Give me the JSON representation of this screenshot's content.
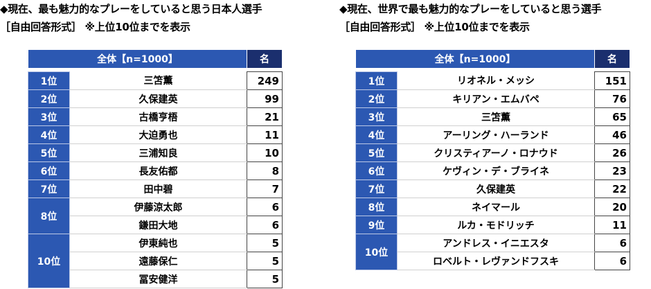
{
  "panels": [
    {
      "title": "◆現在、最も魅力的なプレーをしていると思う日本人選手",
      "subtitle": "［自由回答形式］ ※上位10位までを表示",
      "header": [
        "全体【n=1000】",
        "名"
      ],
      "groups": [
        {
          "rank": "1位",
          "entries": [
            {
              "name": "三笘薫",
              "count": 249
            }
          ]
        },
        {
          "rank": "2位",
          "entries": [
            {
              "name": "久保建英",
              "count": 99
            }
          ]
        },
        {
          "rank": "3位",
          "entries": [
            {
              "name": "古橋亨梧",
              "count": 21
            }
          ]
        },
        {
          "rank": "4位",
          "entries": [
            {
              "name": "大迫勇也",
              "count": 11
            }
          ]
        },
        {
          "rank": "5位",
          "entries": [
            {
              "name": "三浦知良",
              "count": 10
            }
          ]
        },
        {
          "rank": "6位",
          "entries": [
            {
              "name": "長友佑都",
              "count": 8
            }
          ]
        },
        {
          "rank": "7位",
          "entries": [
            {
              "name": "田中碧",
              "count": 7
            }
          ]
        },
        {
          "rank": "8位",
          "entries": [
            {
              "name": "伊藤涼太郎",
              "count": 6
            },
            {
              "name": "鎌田大地",
              "count": 6
            }
          ]
        },
        {
          "rank": "10位",
          "entries": [
            {
              "name": "伊東純也",
              "count": 5
            },
            {
              "name": "遠藤保仁",
              "count": 5
            },
            {
              "name": "冨安健洋",
              "count": 5
            }
          ]
        }
      ]
    },
    {
      "title": "◆現在、世界で最も魅力的なプレーをしていると思う選手",
      "subtitle": "［自由回答形式］ ※上位10位までを表示",
      "header": [
        "全体【n=1000】",
        "名"
      ],
      "groups": [
        {
          "rank": "1位",
          "entries": [
            {
              "name": "リオネル・メッシ",
              "count": 151
            }
          ]
        },
        {
          "rank": "2位",
          "entries": [
            {
              "name": "キリアン・エムバペ",
              "count": 76
            }
          ]
        },
        {
          "rank": "3位",
          "entries": [
            {
              "name": "三笘薫",
              "count": 65
            }
          ]
        },
        {
          "rank": "4位",
          "entries": [
            {
              "name": "アーリング・ハーランド",
              "count": 46
            }
          ]
        },
        {
          "rank": "5位",
          "entries": [
            {
              "name": "クリスティアーノ・ロナウド",
              "count": 26
            }
          ]
        },
        {
          "rank": "6位",
          "entries": [
            {
              "name": "ケヴィン・デ・ブライネ",
              "count": 23
            }
          ]
        },
        {
          "rank": "7位",
          "entries": [
            {
              "name": "久保建英",
              "count": 22
            }
          ]
        },
        {
          "rank": "8位",
          "entries": [
            {
              "name": "ネイマール",
              "count": 20
            }
          ]
        },
        {
          "rank": "9位",
          "entries": [
            {
              "name": "ルカ・モドリッチ",
              "count": 11
            }
          ]
        },
        {
          "rank": "10位",
          "entries": [
            {
              "name": "アンドレス・イニエスタ",
              "count": 6
            },
            {
              "name": "ロベルト・レヴァンドフスキ",
              "count": 6
            }
          ]
        }
      ]
    }
  ]
}
